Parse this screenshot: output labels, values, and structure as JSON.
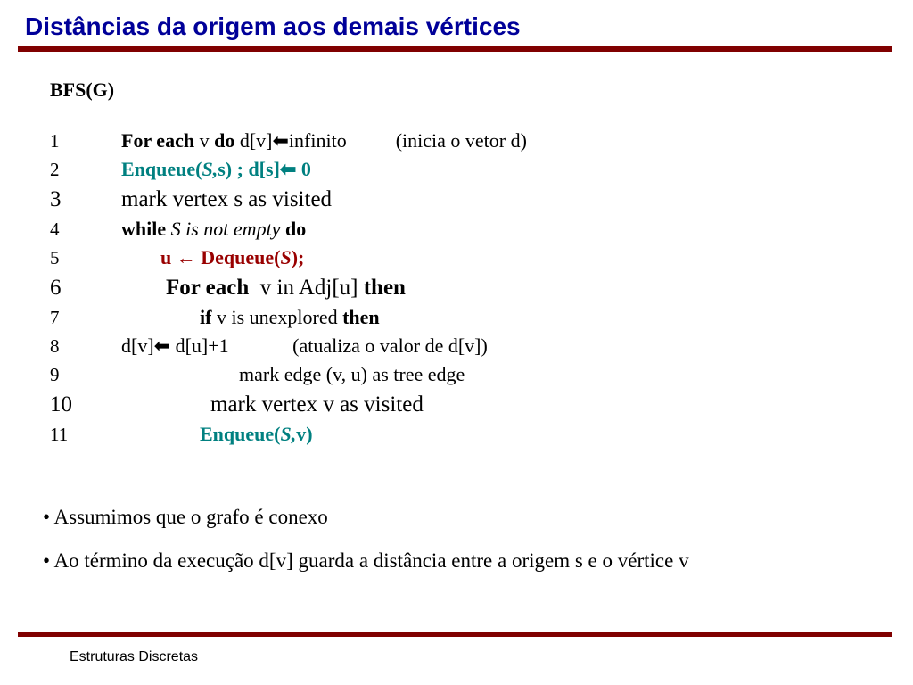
{
  "colors": {
    "title": "#000099",
    "rule": "#800000",
    "teal": "#008080",
    "red": "#990000",
    "text": "#000000",
    "background": "#ffffff"
  },
  "typography": {
    "title_font": "Arial",
    "title_size_pt": 28,
    "body_font": "Times New Roman",
    "body_size_pt": 22,
    "footer_font": "Arial",
    "footer_size_pt": 16
  },
  "title": "Distâncias da origem aos demais vértices",
  "algorithm_name": "BFS(G)",
  "lines": {
    "l1": {
      "num": "1",
      "kw1": "For each",
      "mid": " v ",
      "kw2": "do",
      "rest": " d[v]⬅infinito",
      "note": "(inicia o vetor d)"
    },
    "l2": {
      "num": "2",
      "teal1": "Enqueue(",
      "teal2": "S,",
      "teal3": "s) ; d[s]⬅ 0"
    },
    "l3": {
      "num": "3",
      "text": "mark vertex s as visited"
    },
    "l4": {
      "num": "4",
      "kw1": "while",
      "mid": " S is not empty ",
      "kw2": "do"
    },
    "l5": {
      "num": "5",
      "pre": "        ",
      "red1": "u ← Dequeue(",
      "red2": "S",
      "red3": ");"
    },
    "l6": {
      "num": "6",
      "pre": "        ",
      "kw1": "For each",
      "mid": "  v in Adj[u] ",
      "kw2": "then"
    },
    "l7": {
      "num": "7",
      "pre": "                ",
      "kw1": "if",
      "mid": " v is unexplored ",
      "kw2": "then"
    },
    "l8": {
      "num": "8",
      "text": "d[v]⬅ d[u]+1             (atualiza o valor de d[v])"
    },
    "l9": {
      "num": "9",
      "text": "                        mark edge (v, u) as tree edge"
    },
    "l10": {
      "num": "10",
      "text": "                mark vertex v as visited"
    },
    "l11": {
      "num": "11",
      "pre": "                ",
      "teal1": "Enqueue(",
      "teal2": "S,",
      "teal3": "v)"
    }
  },
  "bullets": {
    "b1": "• Assumimos que o grafo é conexo",
    "b2": "• Ao término da execução d[v] guarda a distância entre a origem s e o vértice v"
  },
  "footer": "Estruturas Discretas"
}
